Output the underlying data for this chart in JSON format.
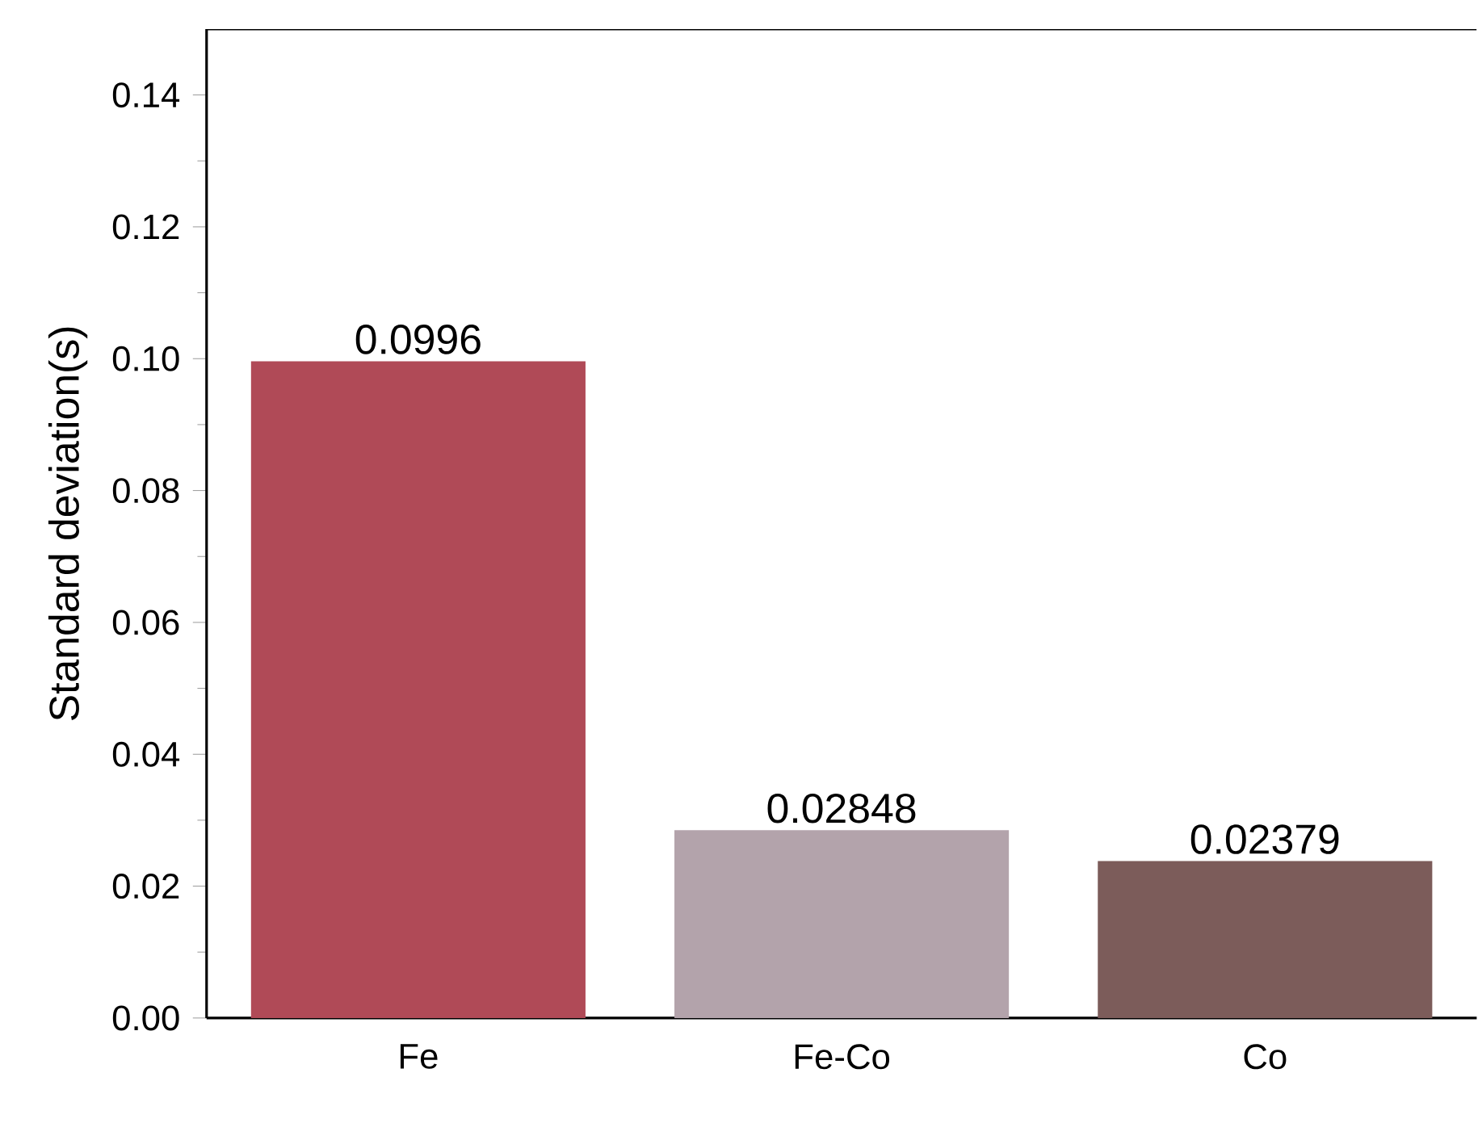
{
  "chart_data": {
    "type": "bar",
    "ylabel": "Standard deviation(s)",
    "categories": [
      "Fe",
      "Fe-Co",
      "Co"
    ],
    "values": [
      0.0996,
      0.02848,
      0.02379
    ],
    "colors": [
      "#b04a57",
      "#b3a3ab",
      "#7c5c5a"
    ],
    "data_labels": true,
    "ylim": [
      0,
      0.15
    ],
    "yticks": [
      {
        "value": 0,
        "label": "0.00"
      },
      {
        "value": 0.02,
        "label": "0.02"
      },
      {
        "value": 0.04,
        "label": "0.04"
      },
      {
        "value": 0.06,
        "label": "0.06"
      },
      {
        "value": 0.08,
        "label": "0.08"
      },
      {
        "value": 0.1,
        "label": "0.10"
      },
      {
        "value": 0.12,
        "label": "0.12"
      },
      {
        "value": 0.14,
        "label": "0.14"
      }
    ],
    "grid": false
  }
}
